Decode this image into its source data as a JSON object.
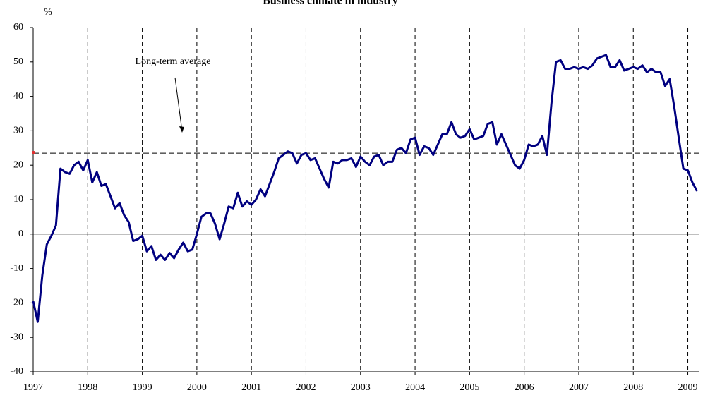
{
  "chart_data": {
    "type": "line",
    "title": "Business climate in industry",
    "y_label": "%",
    "annotation": "Long-term average",
    "average": 23.5,
    "average_color": "#e03030",
    "x": [
      1997,
      1997.083,
      1997.167,
      1997.25,
      1997.333,
      1997.417,
      1997.5,
      1997.583,
      1997.667,
      1997.75,
      1997.833,
      1997.917,
      1998,
      1998.083,
      1998.167,
      1998.25,
      1998.333,
      1998.417,
      1998.5,
      1998.583,
      1998.667,
      1998.75,
      1998.833,
      1998.917,
      1999,
      1999.083,
      1999.167,
      1999.25,
      1999.333,
      1999.417,
      1999.5,
      1999.583,
      1999.667,
      1999.75,
      1999.833,
      1999.917,
      2000,
      2000.083,
      2000.167,
      2000.25,
      2000.333,
      2000.417,
      2000.5,
      2000.583,
      2000.667,
      2000.75,
      2000.833,
      2000.917,
      2001,
      2001.083,
      2001.167,
      2001.25,
      2001.333,
      2001.417,
      2001.5,
      2001.583,
      2001.667,
      2001.75,
      2001.833,
      2001.917,
      2002,
      2002.083,
      2002.167,
      2002.25,
      2002.333,
      2002.417,
      2002.5,
      2002.583,
      2002.667,
      2002.75,
      2002.833,
      2002.917,
      2003,
      2003.083,
      2003.167,
      2003.25,
      2003.333,
      2003.417,
      2003.5,
      2003.583,
      2003.667,
      2003.75,
      2003.833,
      2003.917,
      2004,
      2004.083,
      2004.167,
      2004.25,
      2004.333,
      2004.417,
      2004.5,
      2004.583,
      2004.667,
      2004.75,
      2004.833,
      2004.917,
      2005,
      2005.083,
      2005.167,
      2005.25,
      2005.333,
      2005.417,
      2005.5,
      2005.583,
      2005.667,
      2005.75,
      2005.833,
      2005.917,
      2006,
      2006.083,
      2006.167,
      2006.25,
      2006.333,
      2006.417,
      2006.5,
      2006.583,
      2006.667,
      2006.75,
      2006.833,
      2006.917,
      2007,
      2007.083,
      2007.167,
      2007.25,
      2007.333,
      2007.417,
      2007.5,
      2007.583,
      2007.667,
      2007.75,
      2007.833,
      2007.917,
      2008,
      2008.083,
      2008.167,
      2008.25,
      2008.333,
      2008.417,
      2008.5,
      2008.583,
      2008.667,
      2008.75,
      2008.833,
      2008.917,
      2009,
      2009.083,
      2009.167
    ],
    "series": [
      {
        "name": "Business climate",
        "color": "#000080",
        "values": [
          -19.5,
          -25.5,
          -12,
          -3,
          -0.5,
          2.5,
          19,
          18,
          17.5,
          20,
          21,
          18.5,
          21.5,
          15,
          18,
          14,
          14.5,
          11,
          7.5,
          9,
          5.5,
          3.5,
          -2,
          -1.5,
          -0.5,
          -5,
          -3.5,
          -7.5,
          -6,
          -7.5,
          -5.5,
          -7,
          -4.5,
          -2.5,
          -5,
          -4.5,
          0,
          5,
          6,
          6,
          3,
          -1.5,
          3,
          8,
          7.5,
          12,
          8,
          9.5,
          8.5,
          10,
          13,
          11,
          14.5,
          18,
          22,
          23,
          24,
          23.5,
          20.5,
          23,
          23.5,
          21.5,
          22,
          19,
          16,
          13.5,
          21,
          20.5,
          21.5,
          21.5,
          22,
          19.5,
          22.5,
          21,
          20,
          22.5,
          23,
          20,
          21,
          21,
          24.5,
          25,
          23.5,
          27.5,
          28,
          23,
          25.5,
          25,
          23,
          26,
          29,
          29,
          32.5,
          29,
          28,
          28.5,
          30.5,
          27.5,
          28,
          28.5,
          32,
          32.5,
          26,
          29,
          26,
          23,
          20,
          19,
          21.5,
          26,
          25.5,
          26,
          28.5,
          23,
          38,
          50,
          50.5,
          48,
          48,
          48.5,
          48,
          48.5,
          48,
          49,
          51,
          51.5,
          52,
          48.5,
          48.5,
          50.5,
          47.5,
          48,
          48.5,
          48,
          49,
          47,
          48,
          47,
          47,
          43,
          45,
          37,
          28,
          19,
          18.5,
          15,
          12.5
        ]
      }
    ],
    "xlim": [
      1997,
      2009.2
    ],
    "xticks": [
      1997,
      1998,
      1999,
      2000,
      2001,
      2002,
      2003,
      2004,
      2005,
      2006,
      2007,
      2008,
      2009
    ],
    "ylim": [
      -40,
      60
    ],
    "yticks": [
      -40,
      -30,
      -20,
      -10,
      0,
      10,
      20,
      30,
      40,
      50,
      60
    ],
    "grid": true
  }
}
